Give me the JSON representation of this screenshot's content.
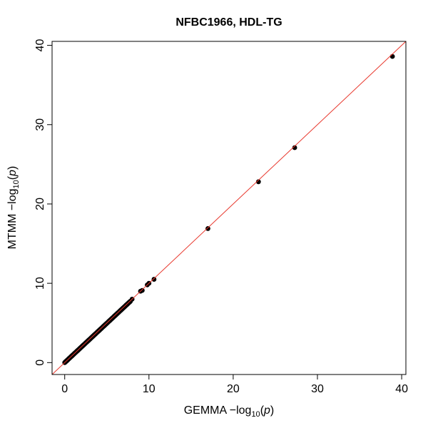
{
  "chart_data": {
    "type": "scatter",
    "title": "NFBC1966, HDL-TG",
    "xlabel": {
      "prefix": "GEMMA  −log",
      "sub": "10",
      "suffix": "(",
      "var": "p",
      "close": ")"
    },
    "ylabel": {
      "prefix": "MTMM  −log",
      "sub": "10",
      "suffix": "(",
      "var": "p",
      "close": ")"
    },
    "xlim": [
      -1.5,
      40.5
    ],
    "ylim": [
      -1.5,
      40.5
    ],
    "x_ticks": [
      0,
      10,
      20,
      30,
      40
    ],
    "y_ticks": [
      0,
      10,
      20,
      30,
      40
    ],
    "grid": false,
    "reference_line": {
      "slope": 1,
      "intercept": 0,
      "color": "#e8382d"
    },
    "point_color": "#000000",
    "dense_range": [
      0,
      7.8
    ],
    "points": [
      {
        "x": 8.0,
        "y": 8.0
      },
      {
        "x": 9.0,
        "y": 9.0
      },
      {
        "x": 9.2,
        "y": 9.1
      },
      {
        "x": 9.8,
        "y": 9.8
      },
      {
        "x": 10.0,
        "y": 10.0
      },
      {
        "x": 10.6,
        "y": 10.5
      },
      {
        "x": 17.0,
        "y": 16.9
      },
      {
        "x": 23.0,
        "y": 22.8
      },
      {
        "x": 27.3,
        "y": 27.1
      },
      {
        "x": 38.9,
        "y": 38.6
      }
    ]
  }
}
